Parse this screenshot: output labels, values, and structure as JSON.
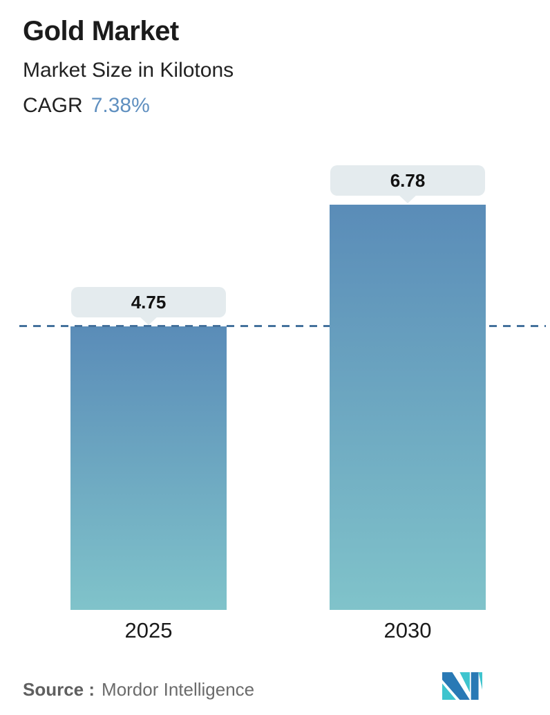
{
  "header": {
    "title": "Gold Market",
    "subtitle": "Market Size in Kilotons",
    "cagr_label": "CAGR",
    "cagr_value": "7.38%"
  },
  "chart_data": {
    "type": "bar",
    "title": "Gold Market",
    "subtitle": "Market Size in Kilotons",
    "unit": "Kilotons",
    "cagr": "7.38%",
    "categories": [
      "2025",
      "2030"
    ],
    "values": [
      4.75,
      6.78
    ],
    "value_labels": [
      "4.75",
      "6.78"
    ],
    "ylim": [
      0,
      7.2
    ],
    "grid": false,
    "legend": false,
    "reference_line": {
      "value": 4.75,
      "style": "dashed",
      "color": "#44719c"
    },
    "bar_gradient_top": "#5a8cb8",
    "bar_gradient_bottom": "#80c3ca",
    "callout_bg": "#e4ebee"
  },
  "footer": {
    "source_label": "Source :",
    "source_value": "Mordor Intelligence",
    "logo": "mordor-intelligence-logo",
    "logo_colors": {
      "blue": "#2979b5",
      "teal": "#3ec4ce"
    }
  }
}
